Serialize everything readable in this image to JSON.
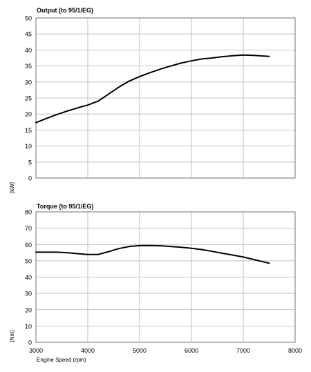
{
  "chart_data": [
    {
      "type": "line",
      "title": "Output (to 95/1/EG)",
      "xlabel": "",
      "ylabel": "[kW]",
      "xlim": [
        3000,
        8000
      ],
      "ylim": [
        0,
        50
      ],
      "xticks": [
        3000,
        4000,
        5000,
        6000,
        7000,
        8000
      ],
      "yticks": [
        0,
        5,
        10,
        15,
        20,
        25,
        30,
        35,
        40,
        45,
        50
      ],
      "show_x_tick_labels": false,
      "grid": true,
      "series": [
        {
          "x": [
            3000,
            3200,
            3400,
            3600,
            3800,
            4000,
            4200,
            4400,
            4600,
            4800,
            5000,
            5200,
            5400,
            5600,
            5800,
            6000,
            6200,
            6400,
            6600,
            6800,
            7000,
            7200,
            7500
          ],
          "y": [
            17.3,
            18.6,
            19.8,
            20.9,
            21.9,
            22.8,
            24.0,
            26.2,
            28.4,
            30.3,
            31.7,
            32.9,
            34.0,
            35.0,
            35.9,
            36.6,
            37.2,
            37.5,
            37.9,
            38.2,
            38.4,
            38.3,
            38.0
          ]
        }
      ]
    },
    {
      "type": "line",
      "title": "Torque (to 95/1/EG)",
      "xlabel": "Engine Speed (rpm)",
      "ylabel": "[Nm]",
      "xlim": [
        3000,
        8000
      ],
      "ylim": [
        0,
        80
      ],
      "xticks": [
        3000,
        4000,
        5000,
        6000,
        7000,
        8000
      ],
      "yticks": [
        0,
        10,
        20,
        30,
        40,
        50,
        60,
        70,
        80
      ],
      "show_x_tick_labels": true,
      "grid": true,
      "series": [
        {
          "x": [
            3000,
            3200,
            3400,
            3600,
            3800,
            4000,
            4200,
            4400,
            4600,
            4800,
            5000,
            5200,
            5400,
            5600,
            5800,
            6000,
            6200,
            6400,
            6600,
            6800,
            7000,
            7200,
            7500
          ],
          "y": [
            55.3,
            55.3,
            55.3,
            55.0,
            54.4,
            53.9,
            53.9,
            55.6,
            57.5,
            58.8,
            59.3,
            59.4,
            59.2,
            58.8,
            58.3,
            57.7,
            56.9,
            55.8,
            54.6,
            53.5,
            52.3,
            50.8,
            48.5
          ]
        }
      ]
    }
  ]
}
